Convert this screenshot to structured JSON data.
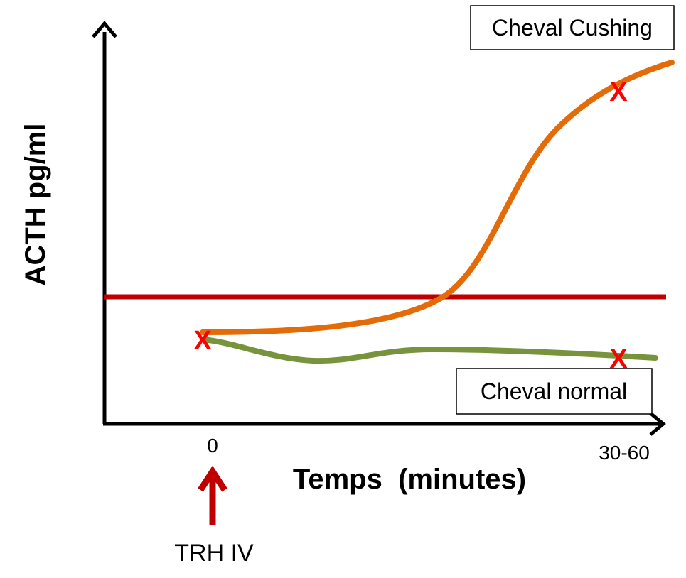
{
  "colors": {
    "axis": "#000000",
    "threshold": "#c00000",
    "cushing_curve": "#e36c09",
    "normal_curve": "#77933c",
    "marker": "#ff0000",
    "arrow": "#c00000"
  },
  "labels": {
    "y_axis": "ACTH pg/ml",
    "x_axis": "Temps  (minutes)",
    "tick_start": "0",
    "tick_end": "30-60",
    "injection": "TRH IV",
    "box_cushing": "Cheval Cushing",
    "box_normal": "Cheval normal",
    "marker_symbol": "X"
  },
  "icons": {
    "injection_arrow": "arrow-up-icon"
  }
}
